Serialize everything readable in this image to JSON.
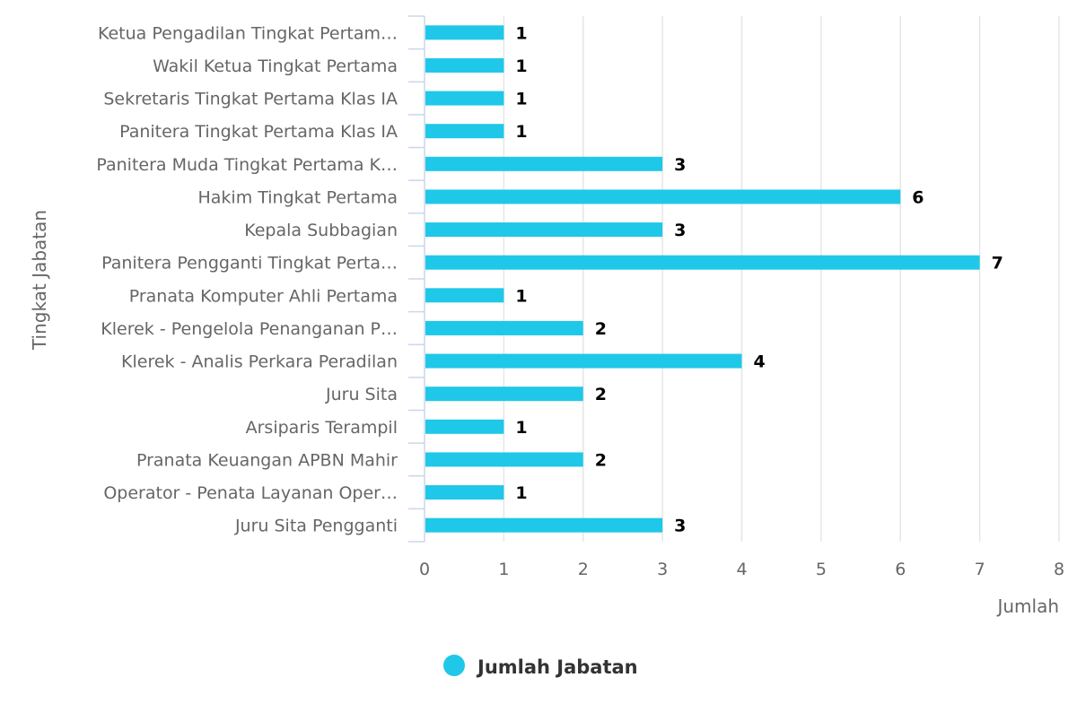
{
  "chart_data": {
    "type": "bar",
    "orientation": "horizontal",
    "categories": [
      "Ketua Pengadilan Tingkat Pertam…",
      "Wakil Ketua Tingkat Pertama",
      "Sekretaris Tingkat Pertama Klas IA",
      "Panitera Tingkat Pertama Klas IA",
      "Panitera Muda Tingkat Pertama K…",
      "Hakim Tingkat Pertama",
      "Kepala Subbagian",
      "Panitera Pengganti Tingkat Perta…",
      "Pranata Komputer Ahli Pertama",
      "Klerek - Pengelola Penanganan P…",
      "Klerek - Analis Perkara Peradilan",
      "Juru Sita",
      "Arsiparis Terampil",
      "Pranata Keuangan APBN Mahir",
      "Operator - Penata Layanan Oper…",
      "Juru Sita Pengganti"
    ],
    "series": [
      {
        "name": "Jumlah Jabatan",
        "values": [
          1,
          1,
          1,
          1,
          3,
          6,
          3,
          7,
          1,
          2,
          4,
          2,
          1,
          2,
          1,
          3
        ],
        "color": "#1fc8e8"
      }
    ],
    "xlabel": "Tingkat Jabatan",
    "ylabel": "Jumlah",
    "ylim": [
      0,
      8
    ],
    "ticks": [
      "0",
      "1",
      "2",
      "3",
      "4",
      "5",
      "6",
      "7",
      "8"
    ],
    "grid": true,
    "data_labels": true,
    "legend": "bottom-center"
  }
}
